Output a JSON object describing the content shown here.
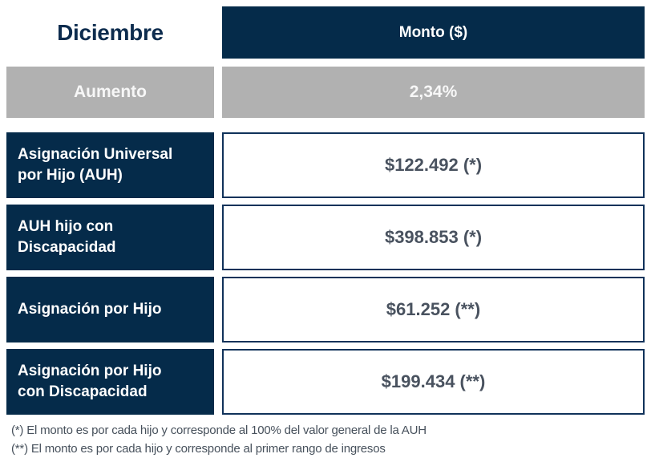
{
  "header": {
    "period": "Diciembre",
    "amount_column": "Monto ($)"
  },
  "increase": {
    "label": "Aumento",
    "value": "2,34%"
  },
  "rows": [
    {
      "label": "Asignación Universal\npor Hijo (AUH)",
      "amount": "$122.492 (*)"
    },
    {
      "label": "AUH hijo con\nDiscapacidad",
      "amount": "$398.853 (*)"
    },
    {
      "label": "Asignación por Hijo",
      "amount": "$61.252 (**)"
    },
    {
      "label": "Asignación por Hijo\ncon Discapacidad",
      "amount": "$199.434 (**)"
    }
  ],
  "footnotes": [
    "(*) El monto es por cada hijo y corresponde al 100% del valor general de la AUH",
    "(**) El monto es por cada hijo y corresponde al primer rango de ingresos"
  ],
  "colors": {
    "navy": "#052b4a",
    "gray": "#b1b1b1",
    "amount_text": "#49525f",
    "footnote_text": "#47515c",
    "period_text": "#0d2c4e"
  },
  "chart_data": {
    "type": "table",
    "title": "Diciembre",
    "columns": [
      "Diciembre",
      "Monto ($)"
    ],
    "rows": [
      [
        "Aumento",
        "2,34%"
      ],
      [
        "Asignación Universal por Hijo (AUH)",
        "$122.492 (*)"
      ],
      [
        "AUH hijo con Discapacidad",
        "$398.853 (*)"
      ],
      [
        "Asignación por Hijo",
        "$61.252 (**)"
      ],
      [
        "Asignación por Hijo con Discapacidad",
        "$199.434 (**)"
      ]
    ],
    "values_numeric": {
      "aumento_pct": 2.34,
      "auh": 122492,
      "auh_discapacidad": 398853,
      "asignacion_por_hijo": 61252,
      "asignacion_por_hijo_discapacidad": 199434
    },
    "footnotes": [
      "(*) El monto es por cada hijo y corresponde al 100% del valor general de la AUH",
      "(**) El monto es por cada hijo y corresponde al primer rango de ingresos"
    ]
  }
}
